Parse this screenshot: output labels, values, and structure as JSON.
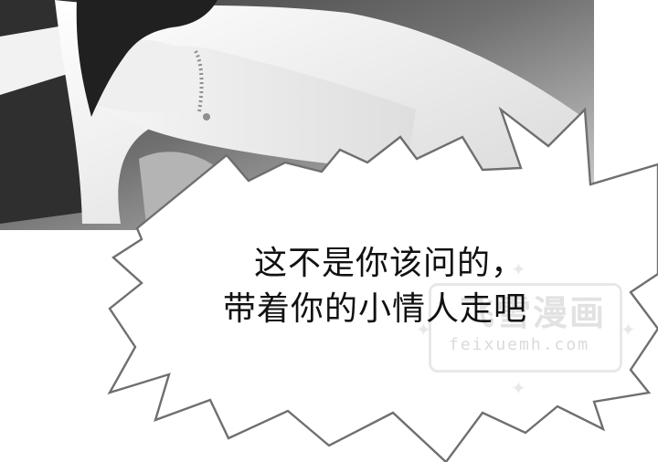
{
  "speech_bubble": {
    "lines": [
      "这不是你该问的，",
      "带着你的小情人走吧"
    ]
  },
  "watermark": {
    "logo_text": "飞雪漫画",
    "url": "feixuemh.com"
  },
  "colors": {
    "ink": "#111111",
    "bubble_fill": "#ffffff",
    "bubble_stroke": "#6f6f6f",
    "photo_dark": "#4a4a4a",
    "photo_light": "#efefef"
  }
}
